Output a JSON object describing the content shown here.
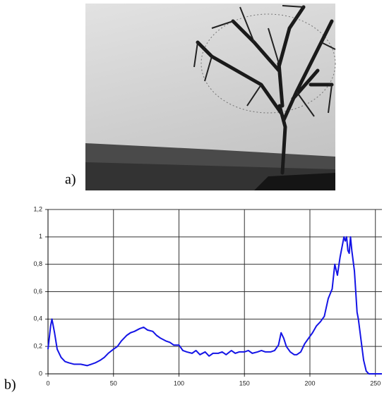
{
  "figure": {
    "panel_a_label": "a)",
    "panel_b_label": "b)"
  },
  "chart_data": {
    "type": "line",
    "color": "#1414e6",
    "x": [
      0,
      2,
      3,
      5,
      7,
      10,
      13,
      16,
      20,
      25,
      30,
      33,
      36,
      40,
      43,
      46,
      50,
      53,
      56,
      60,
      63,
      66,
      70,
      73,
      76,
      80,
      83,
      86,
      90,
      93,
      96,
      100,
      103,
      106,
      110,
      113,
      116,
      120,
      123,
      126,
      130,
      133,
      136,
      140,
      143,
      146,
      150,
      153,
      156,
      160,
      163,
      166,
      170,
      173,
      176,
      178,
      180,
      182,
      185,
      188,
      190,
      193,
      196,
      199,
      202,
      205,
      208,
      211,
      214,
      217,
      219,
      221,
      223,
      225,
      226,
      227,
      228,
      229,
      230,
      231,
      232,
      234,
      236,
      237,
      239,
      241,
      243,
      245,
      250,
      255
    ],
    "values": [
      0.18,
      0.35,
      0.4,
      0.3,
      0.18,
      0.12,
      0.09,
      0.08,
      0.07,
      0.07,
      0.06,
      0.07,
      0.08,
      0.1,
      0.12,
      0.15,
      0.18,
      0.2,
      0.24,
      0.28,
      0.3,
      0.31,
      0.33,
      0.34,
      0.32,
      0.31,
      0.28,
      0.26,
      0.24,
      0.23,
      0.21,
      0.21,
      0.17,
      0.16,
      0.15,
      0.17,
      0.14,
      0.16,
      0.13,
      0.15,
      0.15,
      0.16,
      0.14,
      0.17,
      0.15,
      0.16,
      0.16,
      0.17,
      0.15,
      0.16,
      0.17,
      0.16,
      0.16,
      0.17,
      0.21,
      0.3,
      0.26,
      0.2,
      0.16,
      0.14,
      0.14,
      0.16,
      0.22,
      0.26,
      0.3,
      0.35,
      0.38,
      0.42,
      0.55,
      0.62,
      0.8,
      0.72,
      0.85,
      0.95,
      1.0,
      0.97,
      1.0,
      0.9,
      0.88,
      1.0,
      0.9,
      0.75,
      0.45,
      0.4,
      0.25,
      0.1,
      0.02,
      0,
      0,
      0
    ],
    "xlim": [
      0,
      255
    ],
    "xticks": [
      0,
      50,
      100,
      150,
      200,
      250
    ],
    "ylim": [
      0,
      1.2
    ],
    "yticks": [
      0,
      {
        "value": 0.2,
        "label": "0,2"
      },
      {
        "value": 0.4,
        "label": "0,4"
      },
      {
        "value": 0.6,
        "label": "0,6"
      },
      {
        "value": 0.8,
        "label": "0,8"
      },
      1,
      {
        "value": 1.2,
        "label": "1,2"
      }
    ],
    "grid": true
  }
}
